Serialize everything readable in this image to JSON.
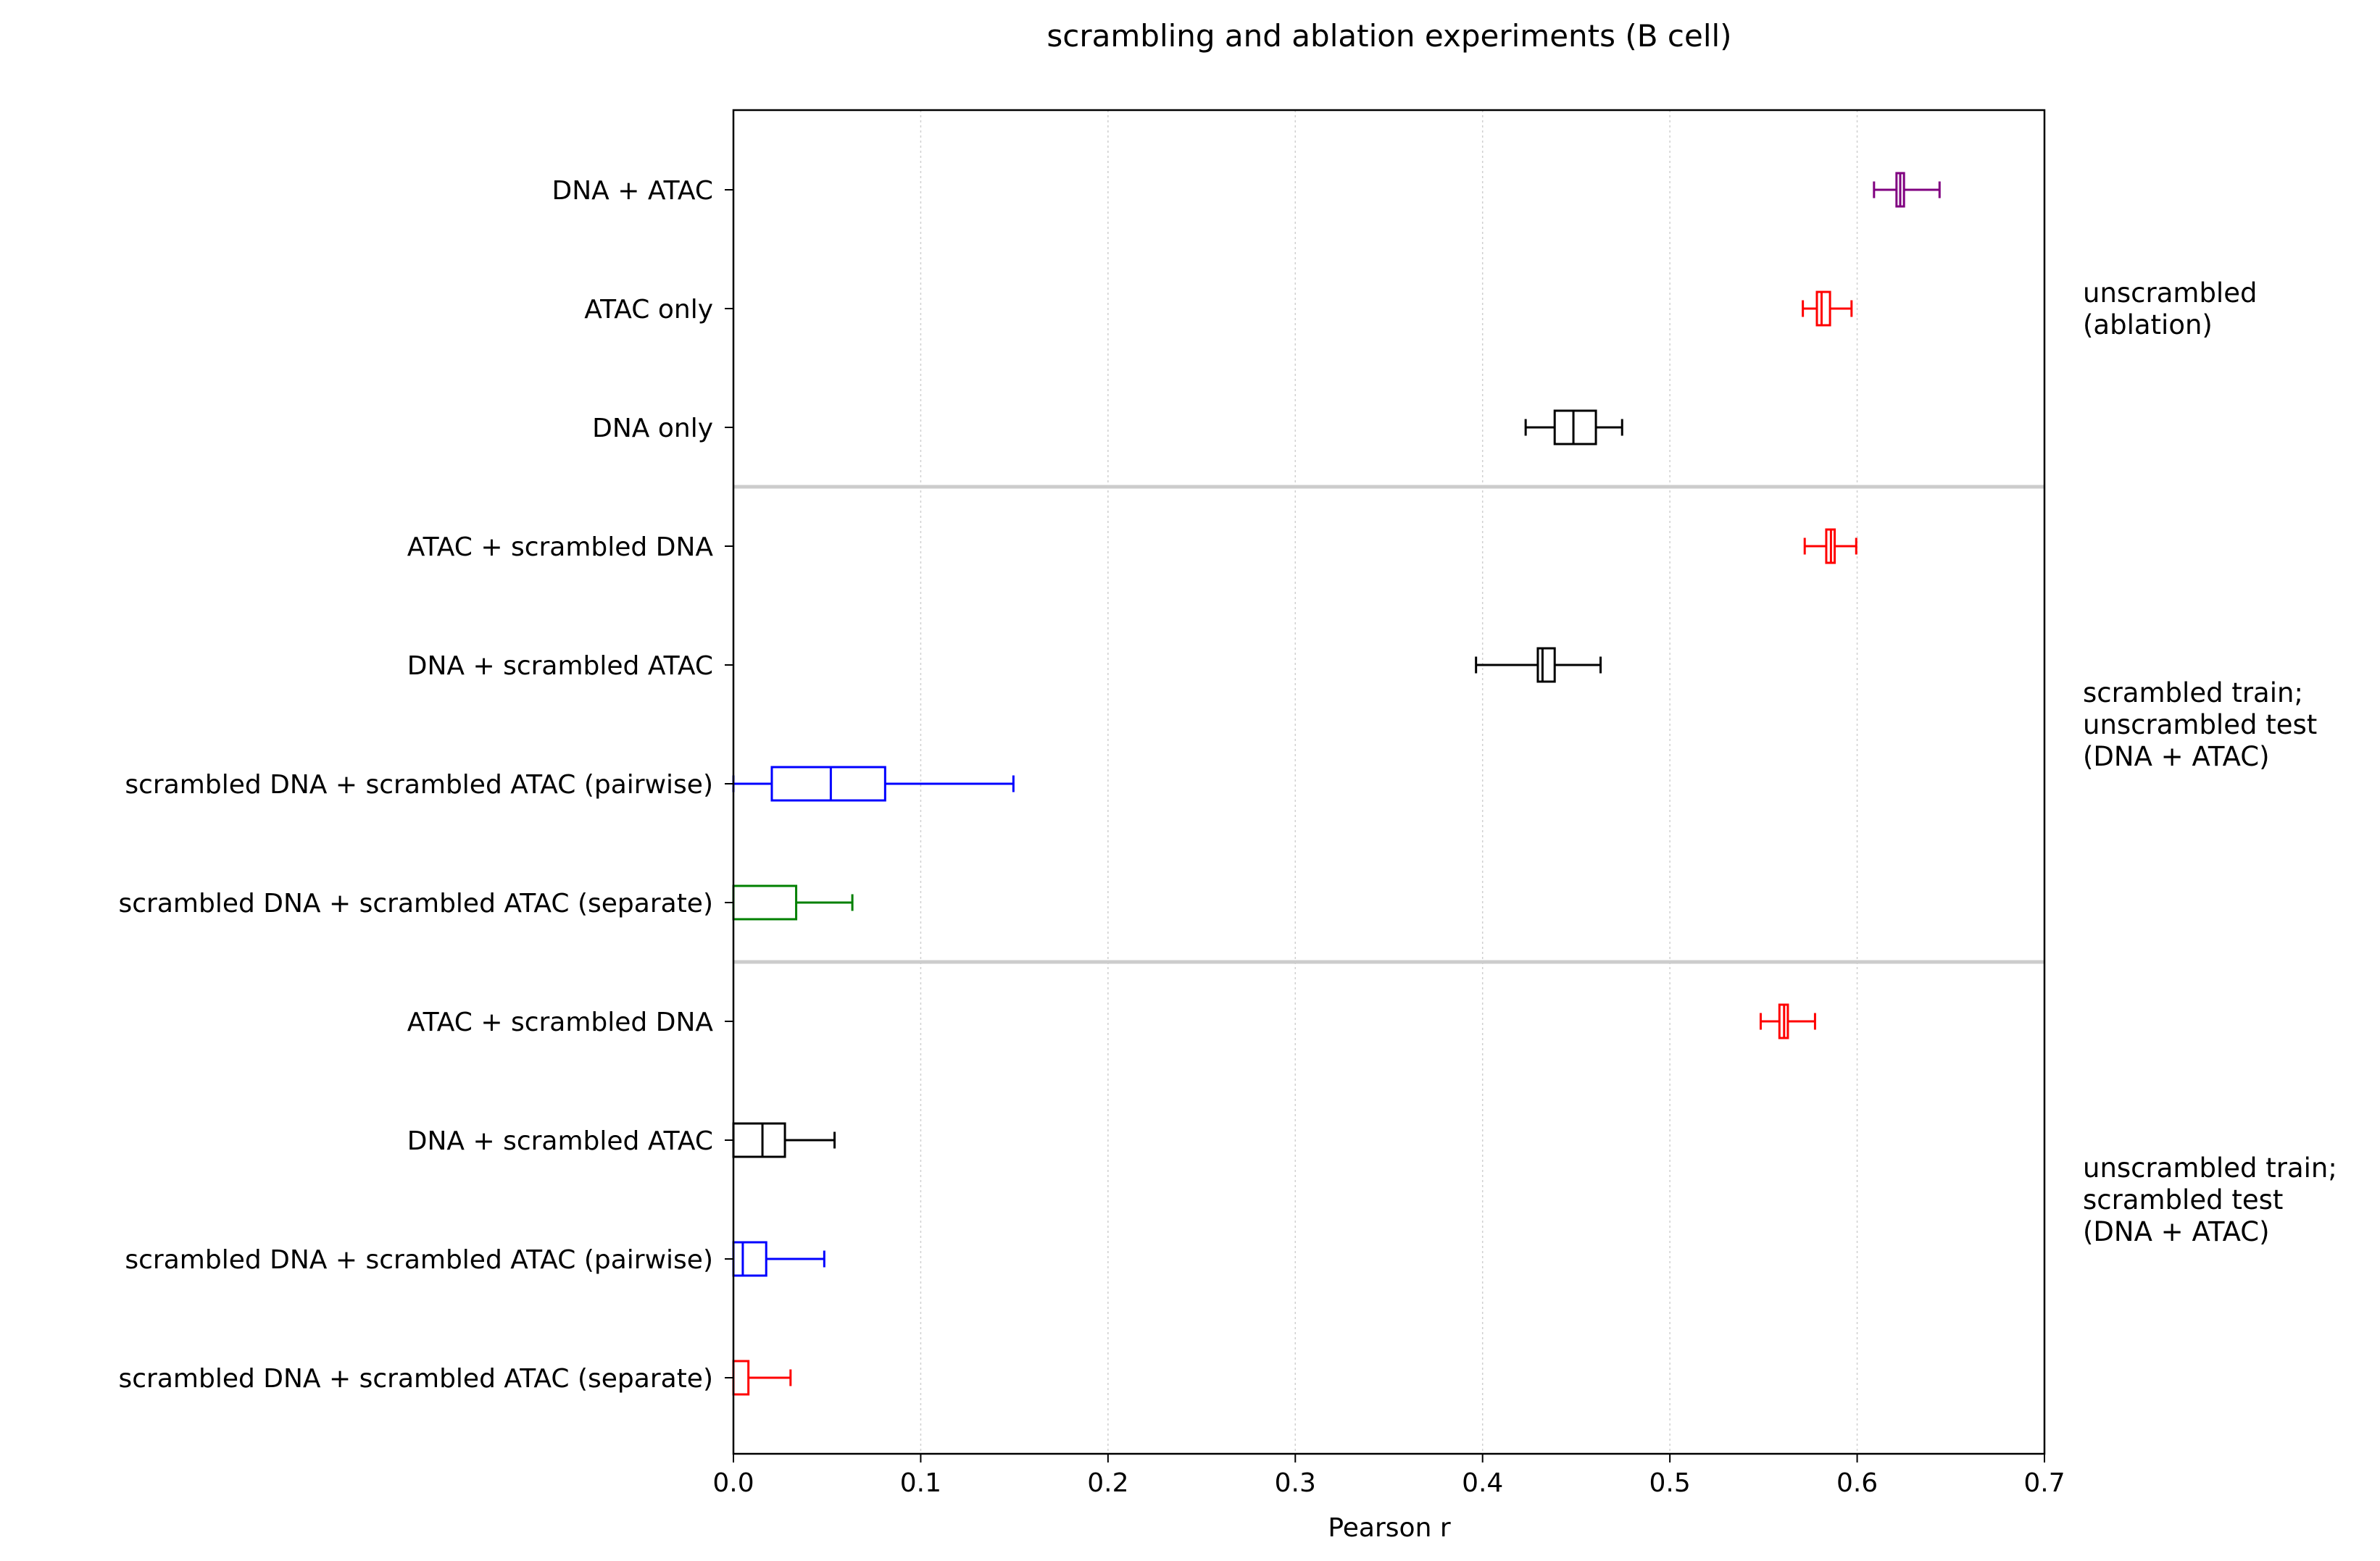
{
  "chart_data": {
    "type": "box",
    "title": "scrambling and ablation experiments (B cell)",
    "xlabel": "Pearson r",
    "ylabel": "",
    "xlim": [
      0.0,
      0.7
    ],
    "xticks": [
      0.0,
      0.1,
      0.2,
      0.3,
      0.4,
      0.5,
      0.6,
      0.7
    ],
    "xtick_labels": [
      "0.0",
      "0.1",
      "0.2",
      "0.3",
      "0.4",
      "0.5",
      "0.6",
      "0.7"
    ],
    "grid": "x-dotted",
    "group_separators_after_rows": [
      3,
      7
    ],
    "groups": [
      {
        "label": "unscrambled\n(ablation)",
        "rows": [
          1,
          3
        ]
      },
      {
        "label": "scrambled train;\nunscrambled test\n(DNA + ATAC)",
        "rows": [
          4,
          7
        ]
      },
      {
        "label": "unscrambled train;\nscrambled test\n(DNA + ATAC)",
        "rows": [
          8,
          11
        ]
      }
    ],
    "rows": [
      {
        "label": "DNA + ATAC",
        "color": "#800080",
        "whisker_low": 0.609,
        "q1": 0.621,
        "median": 0.623,
        "q3": 0.625,
        "whisker_high": 0.644
      },
      {
        "label": "ATAC only",
        "color": "#ff0000",
        "whisker_low": 0.571,
        "q1": 0.5785,
        "median": 0.581,
        "q3": 0.5855,
        "whisker_high": 0.597
      },
      {
        "label": "DNA only",
        "color": "#000000",
        "whisker_low": 0.423,
        "q1": 0.4385,
        "median": 0.4485,
        "q3": 0.4605,
        "whisker_high": 0.4745
      },
      {
        "label": "ATAC + scrambled DNA",
        "color": "#ff0000",
        "whisker_low": 0.572,
        "q1": 0.5835,
        "median": 0.586,
        "q3": 0.588,
        "whisker_high": 0.5995
      },
      {
        "label": "DNA + scrambled ATAC",
        "color": "#000000",
        "whisker_low": 0.3965,
        "q1": 0.4295,
        "median": 0.432,
        "q3": 0.4385,
        "whisker_high": 0.463
      },
      {
        "label": "scrambled DNA + scrambled ATAC (pairwise)",
        "color": "#0000ff",
        "whisker_low": 0.0,
        "q1": 0.0205,
        "median": 0.052,
        "q3": 0.081,
        "whisker_high": 0.1495
      },
      {
        "label": "scrambled DNA + scrambled ATAC (separate)",
        "color": "#008000",
        "whisker_low": 0.0,
        "q1": 0.0,
        "median": 0.0,
        "q3": 0.0335,
        "whisker_high": 0.0635
      },
      {
        "label": "ATAC + scrambled DNA",
        "color": "#ff0000",
        "whisker_low": 0.5485,
        "q1": 0.5585,
        "median": 0.561,
        "q3": 0.563,
        "whisker_high": 0.5775
      },
      {
        "label": "DNA + scrambled ATAC",
        "color": "#000000",
        "whisker_low": 0.0,
        "q1": 0.0,
        "median": 0.0155,
        "q3": 0.0275,
        "whisker_high": 0.054
      },
      {
        "label": "scrambled DNA + scrambled ATAC (pairwise)",
        "color": "#0000ff",
        "whisker_low": 0.0,
        "q1": 0.0,
        "median": 0.005,
        "q3": 0.0175,
        "whisker_high": 0.0485
      },
      {
        "label": "scrambled DNA + scrambled ATAC (separate)",
        "color": "#ff0000",
        "whisker_low": 0.0,
        "q1": 0.0,
        "median": 0.0,
        "q3": 0.008,
        "whisker_high": 0.0305
      }
    ]
  }
}
